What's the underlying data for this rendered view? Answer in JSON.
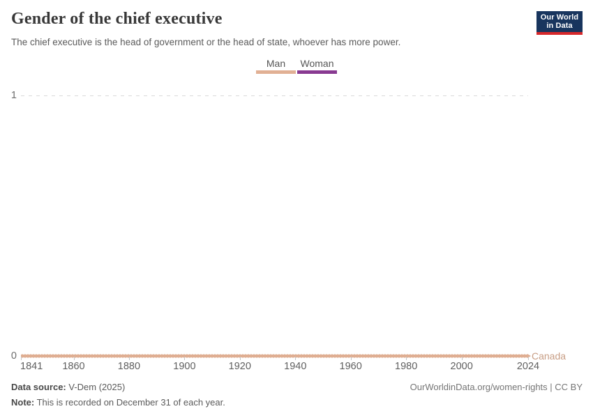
{
  "header": {
    "title": "Gender of the chief executive",
    "subtitle": "The chief executive is the head of government or the head of state, whoever has more power.",
    "logo": {
      "line1": "Our World",
      "line2": "in Data"
    }
  },
  "chart_data": {
    "type": "line",
    "title": "Gender of the chief executive",
    "entity": "Canada",
    "x": {
      "min": 1841,
      "max": 2024,
      "tick_labels": [
        1841,
        1860,
        1880,
        1900,
        1920,
        1940,
        1960,
        1980,
        2000,
        2024
      ]
    },
    "y": {
      "min": 0,
      "max": 1,
      "tick_labels": [
        "0",
        "1"
      ],
      "gridline": "dashed horizontal line at y = 1"
    },
    "legend": [
      {
        "label": "Man",
        "value": 0,
        "color": "#E1B094"
      },
      {
        "label": "Woman",
        "value": 1,
        "color": "#883A91"
      }
    ],
    "series": [
      {
        "name": "Canada",
        "color": "#DFAE92",
        "label_color": "#C89E85",
        "x_start": 1841,
        "x_end": 2024,
        "constant_value": 0,
        "category": "Man",
        "marker_every_year": true
      }
    ],
    "legend_position": "top-center"
  },
  "footer": {
    "data_source_label": "Data source:",
    "data_source_value": "V-Dem (2025)",
    "note_label": "Note:",
    "note_value": "This is recorded on December 31 of each year.",
    "link_text": "OurWorldinData.org/women-rights | CC BY"
  },
  "colors": {
    "man": "#E1B094",
    "woman": "#883A91",
    "entity_label": "#C89E85",
    "line_c": "#DFAE92",
    "logo_navy": "#18355E",
    "logo_red": "#D7282B",
    "grid": "#D9D9D9",
    "tick": "#C6C6C6",
    "axis_text": "#5F5F5F"
  }
}
